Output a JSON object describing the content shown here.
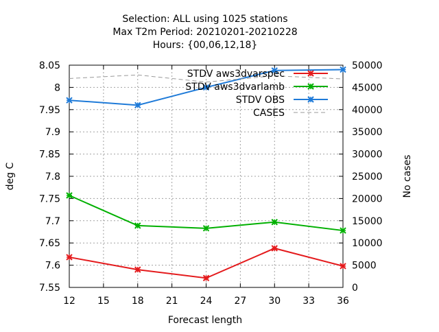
{
  "chart_data": {
    "type": "line",
    "title_lines": [
      "Selection: ALL using  1025 stations",
      "Max T2m   Period: 20210201-20210228",
      "Hours: {00,06,12,18}"
    ],
    "xlabel": "Forecast length",
    "ylabel": "deg C",
    "y2label": "No cases",
    "x_ticks": [
      12,
      15,
      18,
      21,
      24,
      27,
      30,
      33,
      36
    ],
    "xlim": [
      12,
      36
    ],
    "y_ticks": [
      7.55,
      7.6,
      7.65,
      7.7,
      7.75,
      7.8,
      7.85,
      7.9,
      7.95,
      8,
      8.05
    ],
    "y_tick_labels": [
      "7.55",
      "7.6",
      "7.65",
      "7.7",
      "7.75",
      "7.8",
      "7.85",
      "7.9",
      "7.95",
      "8",
      "8.05"
    ],
    "ylim": [
      7.55,
      8.05
    ],
    "y2_ticks": [
      0,
      5000,
      10000,
      15000,
      20000,
      25000,
      30000,
      35000,
      40000,
      45000,
      50000
    ],
    "y2lim": [
      0,
      50000
    ],
    "grid": true,
    "legend_position": "top-right",
    "x": [
      12,
      18,
      24,
      30,
      36
    ],
    "series": [
      {
        "name": "STDV aws3dvarspec",
        "axis": "y",
        "color": "#e41a1c",
        "marker": "x",
        "dash": false,
        "values": [
          7.618,
          7.59,
          7.571,
          7.638,
          7.598
        ]
      },
      {
        "name": "STDV aws3dvarlamb",
        "axis": "y",
        "color": "#00b000",
        "marker": "x",
        "dash": false,
        "values": [
          7.757,
          7.689,
          7.683,
          7.697,
          7.678
        ]
      },
      {
        "name": "STDV OBS",
        "axis": "y",
        "color": "#1e7ad8",
        "marker": "x",
        "dash": false,
        "values": [
          7.971,
          7.96,
          8.0,
          8.038,
          8.04
        ]
      },
      {
        "name": "CASES",
        "axis": "y2",
        "color": "#999999",
        "marker": "none",
        "dash": true,
        "values": [
          47000,
          47800,
          46200,
          47600,
          46900
        ]
      }
    ]
  }
}
